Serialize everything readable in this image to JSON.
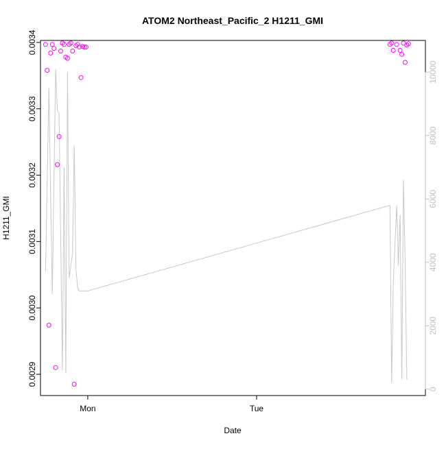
{
  "chart_data": {
    "type": "scatter",
    "title": "ATOM2 Northeast_Pacific_2 H1211_GMI",
    "xlabel": "Date",
    "ylabel": "H1211_GMI",
    "y2label": "",
    "xlim": [
      -0.28,
      2.0
    ],
    "ylim": [
      0.002868,
      0.003403
    ],
    "y2lim": [
      -200,
      11000
    ],
    "x_ticks": [
      {
        "value": 0,
        "label": "Mon"
      },
      {
        "value": 1,
        "label": "Tue"
      }
    ],
    "y_ticks": [
      0.0029,
      0.003,
      0.0031,
      0.0032,
      0.0033,
      0.0034
    ],
    "y_tick_labels": [
      "0.0029",
      "0.0030",
      "0.0031",
      "0.0032",
      "0.0033",
      "0.0034"
    ],
    "y2_ticks": [
      0,
      2000,
      4000,
      6000,
      8000,
      10000
    ],
    "y2_tick_labels": [
      "0",
      "2000",
      "4000",
      "6000",
      "8000",
      "10000"
    ],
    "grid": false,
    "colors": {
      "points": "#ff00ff",
      "line": "#c8c8c8",
      "axis": "#000000",
      "y2_axis": "#c0c0c0"
    },
    "series": [
      {
        "type": "scatter",
        "marker": "open-circle",
        "x": [
          -0.25,
          -0.24,
          -0.23,
          -0.22,
          -0.21,
          -0.2,
          -0.19,
          -0.18,
          -0.17,
          -0.16,
          -0.15,
          -0.14,
          -0.13,
          -0.12,
          -0.11,
          -0.1,
          -0.09,
          -0.08,
          -0.07,
          -0.06,
          -0.05,
          -0.04,
          -0.03,
          -0.02,
          -0.01,
          1.79,
          1.8,
          1.81,
          1.83,
          1.85,
          1.86,
          1.87,
          1.88,
          1.89,
          1.9
        ],
        "y": [
          0.003397,
          0.003358,
          0.002974,
          0.003384,
          0.003397,
          0.003391,
          0.00291,
          0.003216,
          0.003258,
          0.003387,
          0.003399,
          0.003397,
          0.003378,
          0.003376,
          0.003397,
          0.003399,
          0.003387,
          0.002885,
          0.003395,
          0.003397,
          0.003393,
          0.003347,
          0.003394,
          0.003393,
          0.003393,
          0.003397,
          0.003399,
          0.003388,
          0.003397,
          0.003388,
          0.003382,
          0.003399,
          0.00337,
          0.003396,
          0.003398
        ]
      },
      {
        "type": "line",
        "axis": "right",
        "x": [
          -0.25,
          -0.23,
          -0.21,
          -0.19,
          -0.18,
          -0.17,
          -0.15,
          -0.14,
          -0.13,
          -0.12,
          -0.11,
          -0.09,
          -0.08,
          -0.07,
          -0.06,
          -0.05,
          -0.04,
          -0.03,
          -0.02,
          -0.01,
          0.0,
          1.79,
          1.8,
          1.81,
          1.83,
          1.84,
          1.85,
          1.86,
          1.87,
          1.88,
          1.89
        ],
        "y": [
          3700,
          9500,
          3000,
          10100,
          8800,
          8700,
          600,
          7000,
          500,
          10000,
          3500,
          4300,
          7700,
          3800,
          3200,
          3100,
          3100,
          3100,
          3100,
          3100,
          3100,
          5800,
          200,
          3400,
          5800,
          3900,
          5500,
          300,
          6600,
          4000,
          300
        ]
      }
    ]
  }
}
